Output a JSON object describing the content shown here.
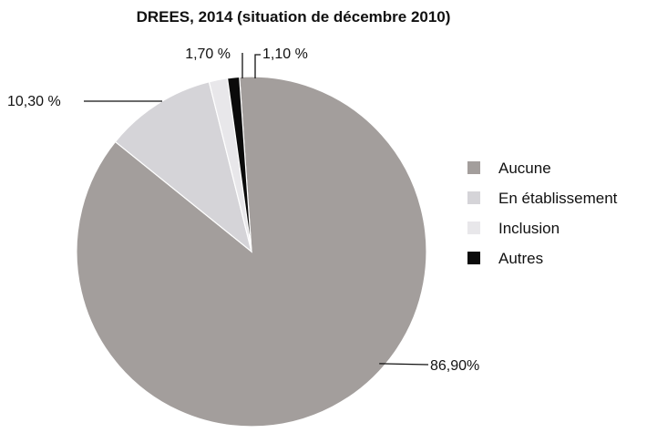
{
  "chart_data": {
    "type": "pie",
    "title": "DREES, 2014 (situation de décembre 2010)",
    "slices": [
      {
        "name": "Aucune",
        "value": 86.9,
        "label": "86,90%",
        "color": "#a39e9c"
      },
      {
        "name": "En établissement",
        "value": 10.3,
        "label": "10,30 %",
        "color": "#d5d4d8"
      },
      {
        "name": "Inclusion",
        "value": 1.7,
        "label": "1,70 %",
        "color": "#e8e7ea"
      },
      {
        "name": "Autres",
        "value": 1.1,
        "label": "1,10 %",
        "color": "#0b0b0b"
      }
    ],
    "legend_position": "right",
    "start": "12 o'clock",
    "direction": "clockwise"
  }
}
